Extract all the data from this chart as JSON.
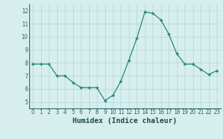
{
  "x": [
    0,
    1,
    2,
    3,
    4,
    5,
    6,
    7,
    8,
    9,
    10,
    11,
    12,
    13,
    14,
    15,
    16,
    17,
    18,
    19,
    20,
    21,
    22,
    23
  ],
  "y": [
    7.9,
    7.9,
    7.9,
    7.0,
    7.0,
    6.5,
    6.1,
    6.1,
    6.1,
    5.1,
    5.5,
    6.6,
    8.2,
    9.9,
    11.9,
    11.8,
    11.3,
    10.2,
    8.7,
    7.9,
    7.9,
    7.5,
    7.1,
    7.4
  ],
  "xlabel": "Humidex (Indice chaleur)",
  "ylim": [
    4.5,
    12.5
  ],
  "yticks": [
    5,
    6,
    7,
    8,
    9,
    10,
    11,
    12
  ],
  "xticks": [
    0,
    1,
    2,
    3,
    4,
    5,
    6,
    7,
    8,
    9,
    10,
    11,
    12,
    13,
    14,
    15,
    16,
    17,
    18,
    19,
    20,
    21,
    22,
    23
  ],
  "line_color": "#2d8b7a",
  "marker": "D",
  "marker_size": 2.0,
  "bg_color": "#d6eeee",
  "grid_color": "#b8d8d8",
  "tick_color": "#2d6060",
  "label_color": "#1a4a4a",
  "tick_label_size": 5.5,
  "xlabel_size": 7.5,
  "linewidth": 1.0
}
